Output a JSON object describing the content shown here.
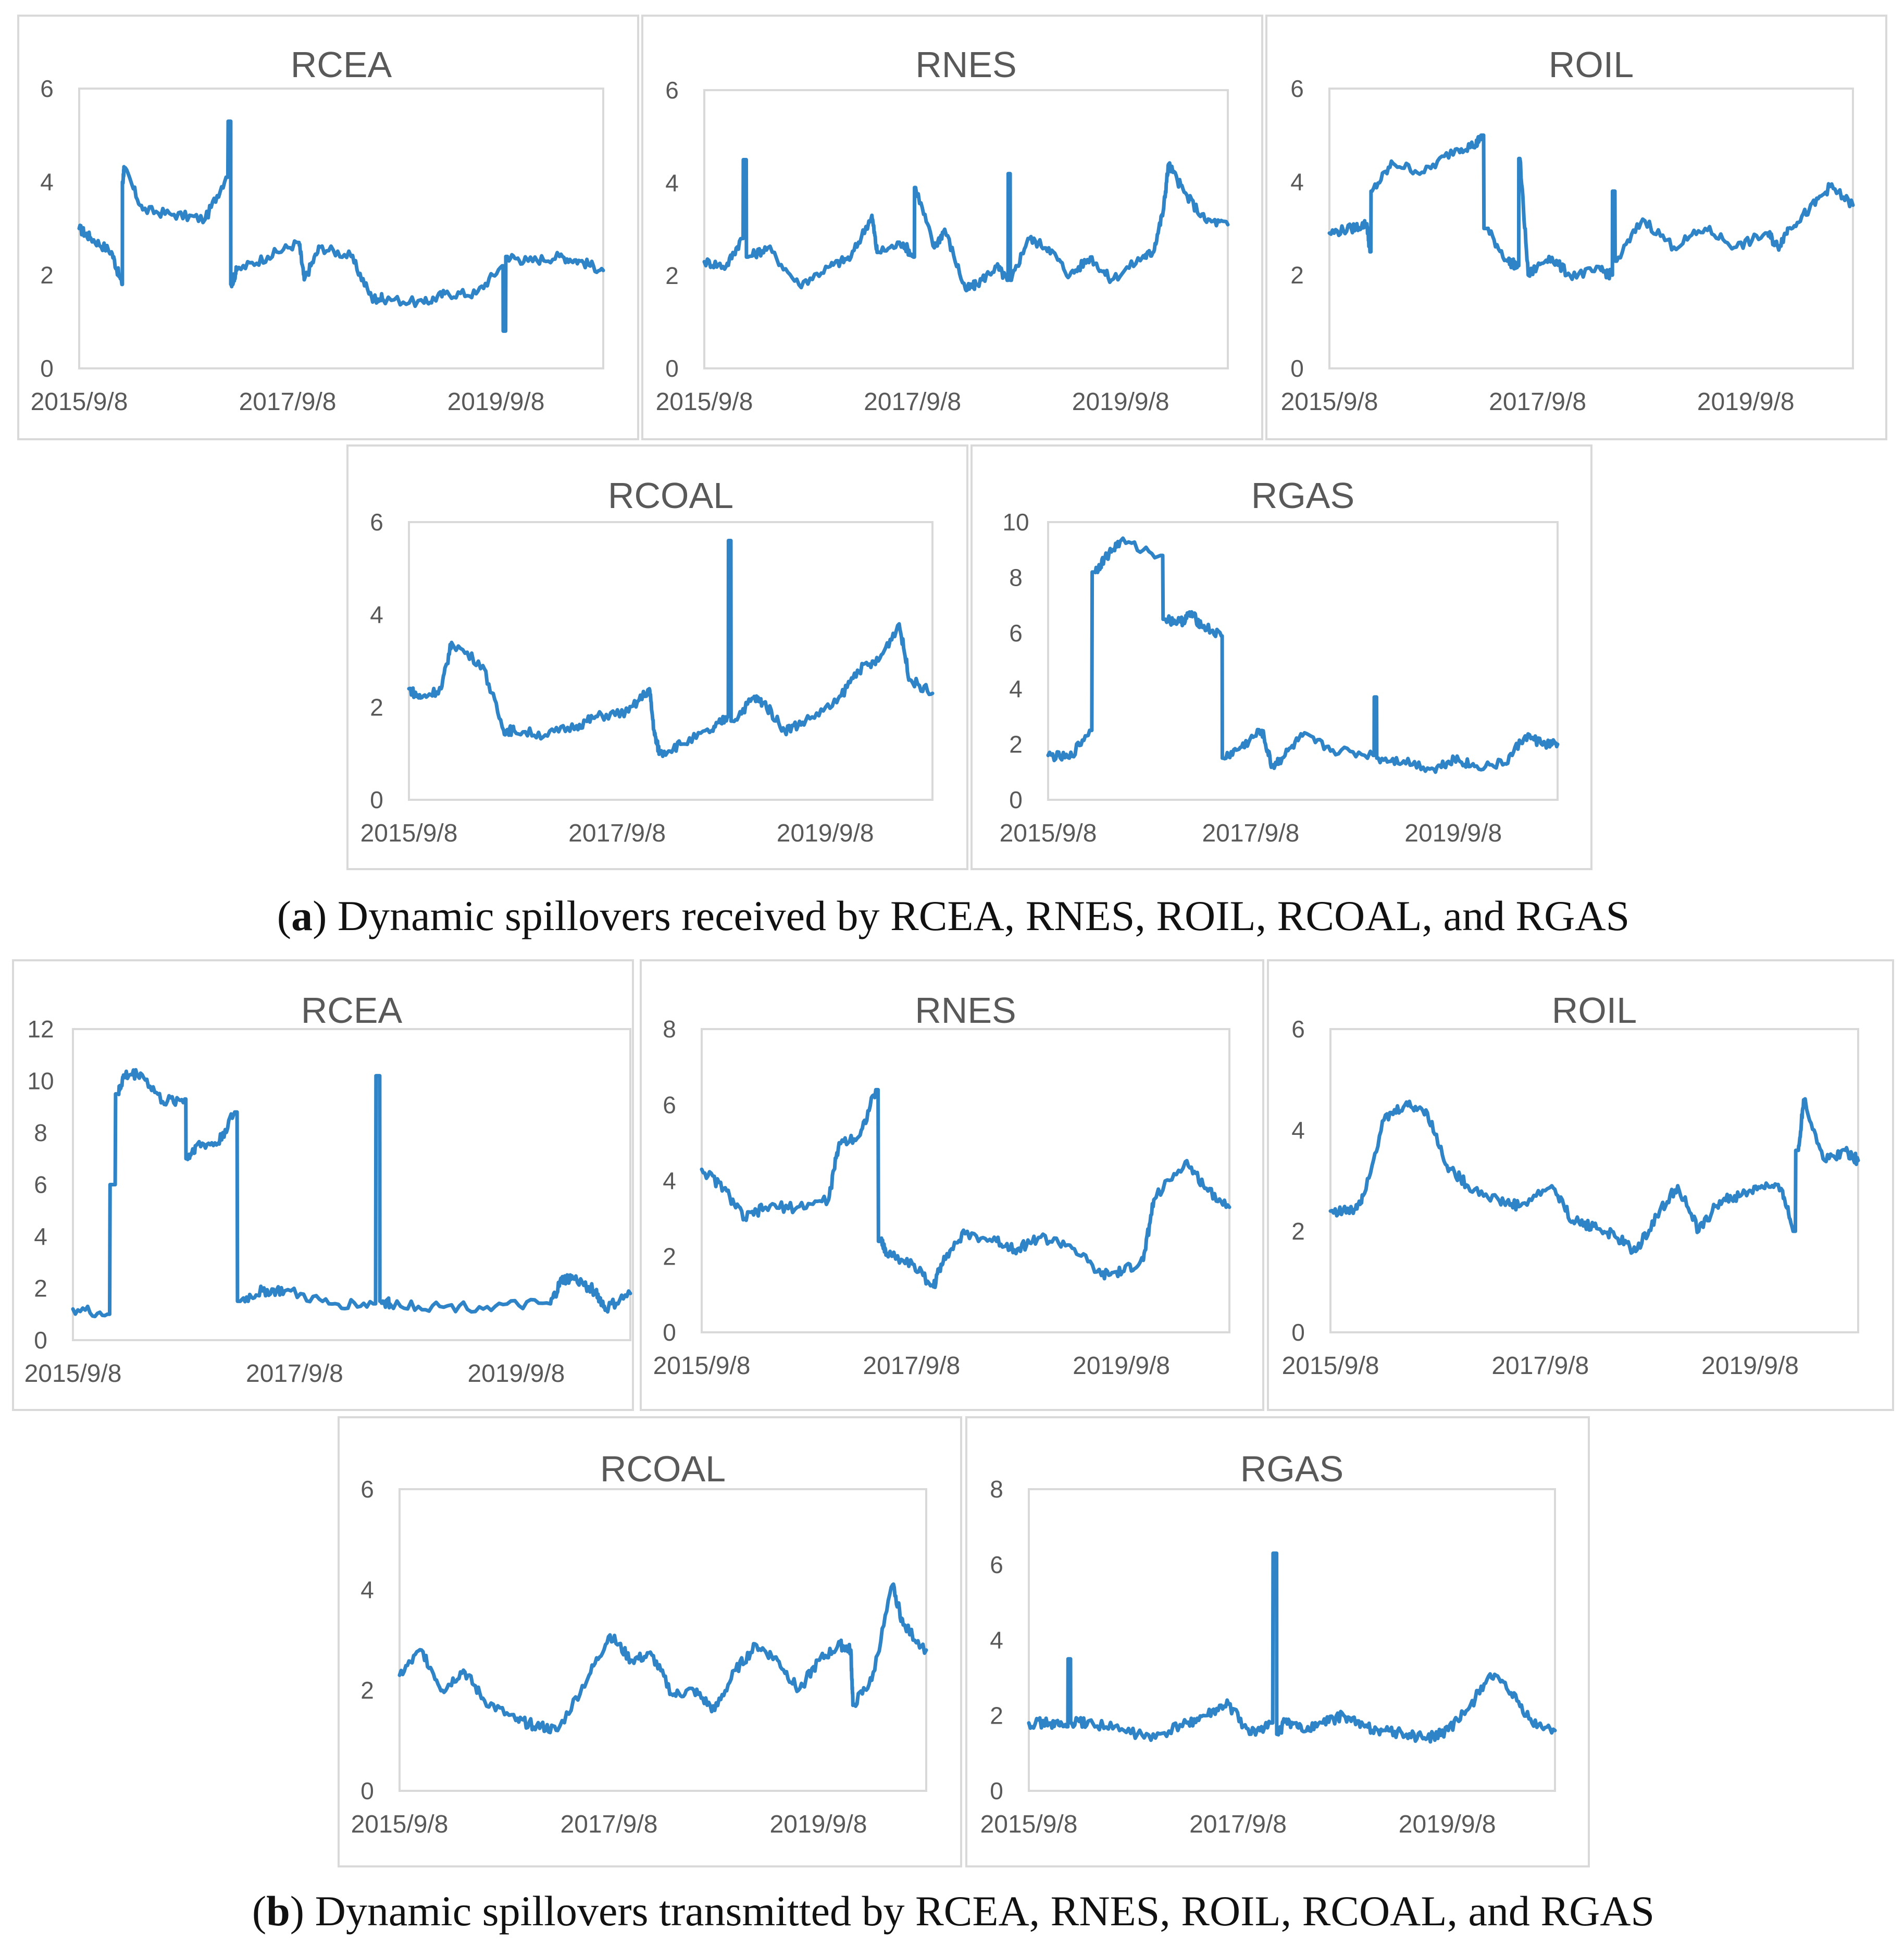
{
  "captions": {
    "a": {
      "label": "a",
      "text": "Dynamic spillovers received by RCEA, RNES, ROIL, RCOAL, and RGAS"
    },
    "b": {
      "label": "b",
      "text": "Dynamic spillovers transmitted by RCEA, RNES, ROIL, RCOAL, and RGAS"
    }
  },
  "colors": {
    "series": "#2e84c6",
    "frame": "#d9d9d9",
    "text": "#595959"
  },
  "chart_data": [
    {
      "id": "a-rcea",
      "type": "line",
      "title": "RCEA",
      "group": "a",
      "xticks": [
        "2015/9/8",
        "2017/9/8",
        "2019/9/8"
      ],
      "yticks": [
        "0",
        "2",
        "4",
        "6"
      ],
      "ylim": [
        0,
        6
      ],
      "xlim": [
        2015.69,
        2020.72
      ],
      "x": [
        2015.69,
        2015.8,
        2016.0,
        2016.1,
        2016.11,
        2016.12,
        2016.3,
        2016.6,
        2016.9,
        2017.1,
        2017.14,
        2017.15,
        2017.2,
        2017.5,
        2017.8,
        2017.85,
        2018.0,
        2018.3,
        2018.5,
        2018.6,
        2019.0,
        2019.2,
        2019.5,
        2019.75,
        2019.77,
        2019.8,
        2020.0,
        2020.3,
        2020.5,
        2020.72
      ],
      "y": [
        3.0,
        2.8,
        2.5,
        1.8,
        4.0,
        4.3,
        3.4,
        3.3,
        3.2,
        4.1,
        5.3,
        1.8,
        2.1,
        2.4,
        2.7,
        1.9,
        2.6,
        2.4,
        1.5,
        1.5,
        1.4,
        1.6,
        1.6,
        2.2,
        0.8,
        2.4,
        2.3,
        2.4,
        2.3,
        2.1
      ]
    },
    {
      "id": "a-rnes",
      "type": "line",
      "title": "RNES",
      "group": "a",
      "xticks": [
        "2015/9/8",
        "2017/9/8",
        "2019/9/8"
      ],
      "yticks": [
        "0",
        "2",
        "4",
        "6"
      ],
      "ylim": [
        0,
        6
      ],
      "xlim": [
        2015.69,
        2020.72
      ],
      "x": [
        2015.69,
        2015.9,
        2016.05,
        2016.08,
        2016.11,
        2016.3,
        2016.6,
        2016.9,
        2017.1,
        2017.3,
        2017.35,
        2017.6,
        2017.7,
        2017.72,
        2017.9,
        2018.0,
        2018.2,
        2018.3,
        2018.5,
        2018.6,
        2018.62,
        2018.64,
        2018.8,
        2019.0,
        2019.2,
        2019.4,
        2019.6,
        2019.9,
        2020.0,
        2020.1,
        2020.15,
        2020.3,
        2020.5,
        2020.72
      ],
      "y": [
        2.3,
        2.2,
        2.8,
        4.5,
        2.4,
        2.6,
        1.8,
        2.2,
        2.4,
        3.3,
        2.5,
        2.7,
        2.4,
        3.9,
        2.6,
        3.0,
        1.7,
        1.8,
        2.2,
        1.9,
        4.2,
        1.9,
        2.8,
        2.6,
        2.0,
        2.4,
        1.9,
        2.4,
        2.5,
        3.4,
        4.4,
        3.8,
        3.2,
        3.1
      ]
    },
    {
      "id": "a-roil",
      "type": "line",
      "title": "ROIL",
      "group": "a",
      "xticks": [
        "2015/9/8",
        "2017/9/8",
        "2019/9/8"
      ],
      "yticks": [
        "0",
        "2",
        "4",
        "6"
      ],
      "ylim": [
        0,
        6
      ],
      "xlim": [
        2015.69,
        2020.72
      ],
      "x": [
        2015.69,
        2015.9,
        2016.05,
        2016.08,
        2016.1,
        2016.3,
        2016.6,
        2016.9,
        2017.1,
        2017.15,
        2017.2,
        2017.4,
        2017.5,
        2017.52,
        2017.6,
        2017.8,
        2018.0,
        2018.3,
        2018.4,
        2018.42,
        2018.45,
        2018.7,
        2019.0,
        2019.3,
        2019.6,
        2019.9,
        2020.0,
        2020.1,
        2020.3,
        2020.5,
        2020.72
      ],
      "y": [
        2.9,
        3.0,
        3.1,
        2.5,
        3.8,
        4.4,
        4.2,
        4.7,
        4.8,
        5.0,
        3.0,
        2.3,
        2.2,
        4.5,
        2.0,
        2.4,
        2.0,
        2.1,
        2.0,
        3.8,
        2.3,
        3.2,
        2.6,
        3.0,
        2.6,
        2.9,
        2.6,
        3.0,
        3.4,
        3.9,
        3.5
      ]
    },
    {
      "id": "a-rcoal",
      "type": "line",
      "title": "RCOAL",
      "group": "a",
      "xticks": [
        "2015/9/8",
        "2017/9/8",
        "2019/9/8"
      ],
      "yticks": [
        "0",
        "2",
        "4",
        "6"
      ],
      "ylim": [
        0,
        6
      ],
      "xlim": [
        2015.69,
        2020.72
      ],
      "x": [
        2015.69,
        2015.8,
        2016.0,
        2016.1,
        2016.4,
        2016.6,
        2016.7,
        2017.0,
        2017.3,
        2017.5,
        2017.8,
        2018.0,
        2018.05,
        2018.1,
        2018.3,
        2018.6,
        2018.75,
        2018.77,
        2018.8,
        2019.0,
        2019.1,
        2019.3,
        2019.5,
        2019.8,
        2020.0,
        2020.2,
        2020.4,
        2020.5,
        2020.72
      ],
      "y": [
        2.4,
        2.2,
        2.4,
        3.4,
        2.9,
        1.5,
        1.5,
        1.4,
        1.6,
        1.8,
        1.9,
        2.4,
        1.4,
        1.0,
        1.2,
        1.5,
        1.8,
        5.6,
        1.7,
        2.2,
        2.1,
        1.5,
        1.7,
        2.1,
        2.8,
        3.0,
        3.8,
        2.6,
        2.3
      ]
    },
    {
      "id": "a-rgas",
      "type": "line",
      "title": "RGAS",
      "group": "a",
      "xticks": [
        "2015/9/8",
        "2017/9/8",
        "2019/9/8"
      ],
      "yticks": [
        "0",
        "2",
        "4",
        "6",
        "8",
        "10"
      ],
      "ylim": [
        0,
        10
      ],
      "xlim": [
        2015.69,
        2020.72
      ],
      "x": [
        2015.69,
        2015.9,
        2016.1,
        2016.15,
        2016.25,
        2016.4,
        2016.8,
        2016.85,
        2017.0,
        2017.1,
        2017.2,
        2017.4,
        2017.42,
        2017.6,
        2017.8,
        2017.9,
        2018.0,
        2018.2,
        2018.5,
        2018.9,
        2018.92,
        2018.95,
        2019.2,
        2019.5,
        2019.7,
        2019.9,
        2020.2,
        2020.4,
        2020.6,
        2020.72
      ],
      "y": [
        1.6,
        1.5,
        2.5,
        8.2,
        8.7,
        9.3,
        8.8,
        6.5,
        6.4,
        6.7,
        6.3,
        5.9,
        1.5,
        1.9,
        2.5,
        1.2,
        1.5,
        2.3,
        1.8,
        1.6,
        3.7,
        1.5,
        1.4,
        1.1,
        1.5,
        1.2,
        1.3,
        2.3,
        2.0,
        2.0
      ]
    },
    {
      "id": "b-rcea",
      "type": "line",
      "title": "RCEA",
      "group": "b",
      "xticks": [
        "2015/9/8",
        "2017/9/8",
        "2019/9/8"
      ],
      "yticks": [
        "0",
        "2",
        "4",
        "6",
        "8",
        "10",
        "12"
      ],
      "ylim": [
        0,
        12
      ],
      "xlim": [
        2015.69,
        2020.72
      ],
      "x": [
        2015.69,
        2016.0,
        2016.05,
        2016.1,
        2016.15,
        2016.3,
        2016.5,
        2016.7,
        2016.72,
        2016.8,
        2017.0,
        2017.15,
        2017.2,
        2017.4,
        2017.6,
        2018.0,
        2018.4,
        2018.45,
        2018.47,
        2018.55,
        2019.0,
        2019.5,
        2020.0,
        2020.1,
        2020.2,
        2020.4,
        2020.5,
        2020.72
      ],
      "y": [
        1.2,
        1.0,
        6.0,
        9.5,
        10.2,
        10.3,
        9.2,
        9.3,
        7.0,
        7.5,
        7.6,
        8.8,
        1.5,
        1.9,
        1.9,
        1.4,
        1.4,
        10.2,
        1.5,
        1.4,
        1.3,
        1.3,
        1.4,
        2.3,
        2.4,
        1.9,
        1.2,
        1.8
      ]
    },
    {
      "id": "b-rnes",
      "type": "line",
      "title": "RNES",
      "group": "b",
      "xticks": [
        "2015/9/8",
        "2017/9/8",
        "2019/9/8"
      ],
      "yticks": [
        "0",
        "2",
        "4",
        "6",
        "8"
      ],
      "ylim": [
        0,
        8
      ],
      "xlim": [
        2015.69,
        2020.72
      ],
      "x": [
        2015.69,
        2015.9,
        2016.1,
        2016.3,
        2016.6,
        2016.9,
        2017.0,
        2017.2,
        2017.35,
        2017.4,
        2017.45,
        2017.7,
        2017.9,
        2018.0,
        2018.2,
        2018.5,
        2018.7,
        2018.9,
        2019.2,
        2019.5,
        2019.7,
        2019.9,
        2020.0,
        2020.3,
        2020.5,
        2020.72
      ],
      "y": [
        4.3,
        3.8,
        3.0,
        3.3,
        3.3,
        3.5,
        5.0,
        5.2,
        6.4,
        2.4,
        2.1,
        1.8,
        1.2,
        2.0,
        2.6,
        2.4,
        2.2,
        2.5,
        2.3,
        1.5,
        1.6,
        1.9,
        3.5,
        4.5,
        3.8,
        3.3
      ]
    },
    {
      "id": "b-roil",
      "type": "line",
      "title": "ROIL",
      "group": "b",
      "xticks": [
        "2015/9/8",
        "2017/9/8",
        "2019/9/8"
      ],
      "yticks": [
        "0",
        "2",
        "4",
        "6"
      ],
      "ylim": [
        0,
        6
      ],
      "xlim": [
        2015.69,
        2020.72
      ],
      "x": [
        2015.69,
        2015.9,
        2016.0,
        2016.2,
        2016.4,
        2016.6,
        2016.8,
        2017.0,
        2017.3,
        2017.5,
        2017.8,
        2018.0,
        2018.2,
        2018.4,
        2018.6,
        2018.8,
        2019.0,
        2019.2,
        2019.4,
        2019.6,
        2019.8,
        2020.0,
        2020.1,
        2020.15,
        2020.2,
        2020.4,
        2020.6,
        2020.72
      ],
      "y": [
        2.4,
        2.4,
        2.7,
        4.2,
        4.5,
        4.4,
        3.3,
        2.9,
        2.6,
        2.5,
        2.9,
        2.2,
        2.1,
        1.9,
        1.6,
        2.3,
        2.9,
        2.0,
        2.6,
        2.7,
        2.9,
        2.8,
        2.0,
        3.6,
        4.6,
        3.4,
        3.6,
        3.4
      ]
    },
    {
      "id": "b-rcoal",
      "type": "line",
      "title": "RCOAL",
      "group": "b",
      "xticks": [
        "2015/9/8",
        "2017/9/8",
        "2019/9/8"
      ],
      "yticks": [
        "0",
        "2",
        "4",
        "6"
      ],
      "ylim": [
        0,
        6
      ],
      "xlim": [
        2015.69,
        2020.72
      ],
      "x": [
        2015.69,
        2015.9,
        2016.1,
        2016.3,
        2016.5,
        2016.8,
        2017.0,
        2017.2,
        2017.5,
        2017.7,
        2017.9,
        2018.1,
        2018.3,
        2018.5,
        2018.7,
        2018.9,
        2019.1,
        2019.3,
        2019.5,
        2019.7,
        2019.9,
        2020.0,
        2020.02,
        2020.2,
        2020.4,
        2020.5,
        2020.72
      ],
      "y": [
        2.3,
        2.8,
        2.0,
        2.4,
        1.8,
        1.4,
        1.3,
        1.2,
        2.3,
        3.1,
        2.6,
        2.7,
        1.9,
        2.0,
        1.6,
        2.4,
        2.9,
        2.6,
        2.0,
        2.6,
        2.9,
        2.8,
        1.7,
        2.2,
        4.1,
        3.3,
        2.8
      ]
    },
    {
      "id": "b-rgas",
      "type": "line",
      "title": "RGAS",
      "group": "b",
      "xticks": [
        "2015/9/8",
        "2017/9/8",
        "2019/9/8"
      ],
      "yticks": [
        "0",
        "2",
        "4",
        "6",
        "8"
      ],
      "ylim": [
        0,
        8
      ],
      "xlim": [
        2015.69,
        2020.72
      ],
      "x": [
        2015.69,
        2015.9,
        2016.05,
        2016.08,
        2016.1,
        2016.3,
        2016.6,
        2016.9,
        2017.2,
        2017.4,
        2017.6,
        2017.8,
        2018.0,
        2018.05,
        2018.07,
        2018.15,
        2018.3,
        2018.5,
        2018.7,
        2018.9,
        2019.1,
        2019.3,
        2019.5,
        2019.7,
        2019.9,
        2020.1,
        2020.3,
        2020.5,
        2020.72
      ],
      "y": [
        1.8,
        1.8,
        1.7,
        3.5,
        1.8,
        1.8,
        1.6,
        1.4,
        1.8,
        2.0,
        2.3,
        1.5,
        1.8,
        6.3,
        1.5,
        1.9,
        1.6,
        1.8,
        2.0,
        1.7,
        1.6,
        1.5,
        1.4,
        1.6,
        2.2,
        3.1,
        2.6,
        1.8,
        1.6
      ]
    }
  ]
}
